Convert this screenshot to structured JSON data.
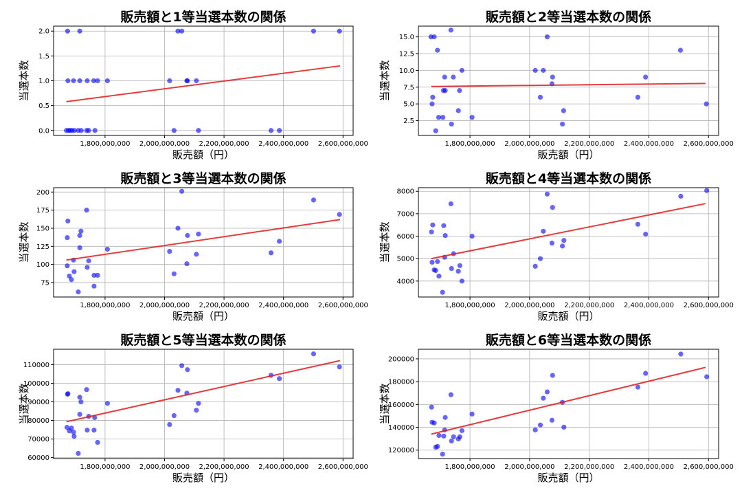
{
  "chart_data": [
    {
      "type": "scatter",
      "title": "販売額と1等当選本数の関係",
      "xlabel": "販売額（円）",
      "ylabel": "当選本数",
      "x_unit": "million yen",
      "xlim": [
        1627,
        2634
      ],
      "ylim": [
        -0.1,
        2.1
      ],
      "xticks": [
        1800,
        2000,
        2200,
        2400,
        2600
      ],
      "xtick_labels": [
        "1,800,000,000",
        "2,000,000,000",
        "2,200,000,000",
        "2,400,000,000",
        "2,600,000,000"
      ],
      "yticks": [
        0,
        0.5,
        1,
        1.5,
        2
      ],
      "ytick_labels": [
        "0.0",
        "0.5",
        "1.0",
        "1.5",
        "2.0"
      ],
      "grid": true,
      "points": [
        [
          1674,
          2
        ],
        [
          1715,
          2
        ],
        [
          2045,
          2
        ],
        [
          2058,
          2
        ],
        [
          2501,
          2
        ],
        [
          2588,
          2
        ],
        [
          1675,
          1
        ],
        [
          1694,
          1
        ],
        [
          1715,
          1
        ],
        [
          1740,
          1
        ],
        [
          1762,
          1
        ],
        [
          1775,
          1
        ],
        [
          1808,
          1
        ],
        [
          2017,
          1
        ],
        [
          2075,
          1
        ],
        [
          2077,
          1
        ],
        [
          2107,
          1
        ],
        [
          1670,
          0
        ],
        [
          1677,
          0
        ],
        [
          1683,
          0
        ],
        [
          1689,
          0
        ],
        [
          1697,
          0
        ],
        [
          1710,
          0
        ],
        [
          1720,
          0
        ],
        [
          1738,
          0
        ],
        [
          1745,
          0
        ],
        [
          1766,
          0
        ],
        [
          2032,
          0
        ],
        [
          2114,
          0
        ],
        [
          2358,
          0
        ],
        [
          2386,
          0
        ]
      ],
      "trend": [
        [
          1670,
          0.58
        ],
        [
          2590,
          1.3
        ]
      ]
    },
    {
      "type": "scatter",
      "title": "販売額と2等当選本数の関係",
      "xlabel": "販売額（円）",
      "ylabel": "当選本数",
      "xlim": [
        1627,
        2634
      ],
      "ylim": [
        0.3,
        16.6
      ],
      "xticks": [
        1800,
        2000,
        2200,
        2400,
        2600
      ],
      "xtick_labels": [
        "1,800,000,000",
        "2,000,000,000",
        "2,200,000,000",
        "2,400,000,000",
        "2,600,000,000"
      ],
      "yticks": [
        2.5,
        5,
        7.5,
        10,
        12.5,
        15
      ],
      "ytick_labels": [
        "2.5",
        "5.0",
        "7.5",
        "10.0",
        "12.5",
        "15.0"
      ],
      "grid": true,
      "points": [
        [
          1669,
          15
        ],
        [
          1680,
          15
        ],
        [
          1736,
          16
        ],
        [
          1691,
          13
        ],
        [
          1773,
          10
        ],
        [
          1715,
          9
        ],
        [
          1744,
          9
        ],
        [
          1711,
          7
        ],
        [
          1717,
          7
        ],
        [
          1765,
          7
        ],
        [
          1675,
          6
        ],
        [
          1673,
          5
        ],
        [
          1761,
          4
        ],
        [
          1695,
          3
        ],
        [
          1709,
          3
        ],
        [
          1807,
          3
        ],
        [
          1738,
          2
        ],
        [
          1685,
          1
        ],
        [
          2019,
          10
        ],
        [
          2046,
          10
        ],
        [
          2059,
          15
        ],
        [
          2077,
          9
        ],
        [
          2075,
          8
        ],
        [
          2036,
          6
        ],
        [
          2114,
          4
        ],
        [
          2110,
          2
        ],
        [
          2363,
          6
        ],
        [
          2389,
          9
        ],
        [
          2506,
          13
        ],
        [
          2593,
          5
        ]
      ],
      "trend": [
        [
          1670,
          7.6
        ],
        [
          2590,
          8.05
        ]
      ]
    },
    {
      "type": "scatter",
      "title": "販売額と3等当選本数の関係",
      "xlabel": "販売額（円）",
      "ylabel": "当選本数",
      "xlim": [
        1627,
        2634
      ],
      "ylim": [
        55,
        206
      ],
      "xticks": [
        1800,
        2000,
        2200,
        2400,
        2600
      ],
      "xtick_labels": [
        "1,800,000,000",
        "2,000,000,000",
        "2,200,000,000",
        "2,400,000,000",
        "2,600,000,000"
      ],
      "yticks": [
        75,
        100,
        125,
        150,
        175,
        200
      ],
      "ytick_labels": [
        "75",
        "100",
        "125",
        "150",
        "175",
        "200"
      ],
      "grid": true,
      "points": [
        [
          2058,
          201
        ],
        [
          2501,
          189
        ],
        [
          2588,
          169
        ],
        [
          1738,
          175
        ],
        [
          1675,
          160
        ],
        [
          1673,
          137
        ],
        [
          1719,
          146
        ],
        [
          1715,
          140
        ],
        [
          1715,
          123
        ],
        [
          1808,
          121
        ],
        [
          1694,
          106
        ],
        [
          1673,
          98
        ],
        [
          1745,
          105
        ],
        [
          1740,
          96
        ],
        [
          1696,
          90
        ],
        [
          1680,
          84
        ],
        [
          1687,
          79
        ],
        [
          1763,
          85
        ],
        [
          1775,
          85
        ],
        [
          1763,
          70
        ],
        [
          1710,
          62
        ],
        [
          2045,
          150
        ],
        [
          2077,
          140
        ],
        [
          2114,
          142
        ],
        [
          2017,
          118
        ],
        [
          2107,
          114
        ],
        [
          2075,
          101
        ],
        [
          2032,
          87
        ],
        [
          2358,
          116
        ],
        [
          2386,
          132
        ]
      ],
      "trend": [
        [
          1670,
          106
        ],
        [
          2590,
          162
        ]
      ]
    },
    {
      "type": "scatter",
      "title": "販売額と4等当選本数の関係",
      "xlabel": "販売額（円）",
      "ylabel": "当選本数",
      "xlim": [
        1627,
        2634
      ],
      "ylim": [
        3290,
        8160
      ],
      "xticks": [
        1800,
        2000,
        2200,
        2400,
        2600
      ],
      "xtick_labels": [
        "1,800,000,000",
        "2,000,000,000",
        "2,200,000,000",
        "2,400,000,000",
        "2,600,000,000"
      ],
      "yticks": [
        4000,
        5000,
        6000,
        7000,
        8000
      ],
      "ytick_labels": [
        "4000",
        "5000",
        "6000",
        "7000",
        "8000"
      ],
      "grid": true,
      "points": [
        [
          2594,
          8030
        ],
        [
          2507,
          7780
        ],
        [
          2059,
          7875
        ],
        [
          2077,
          7280
        ],
        [
          1736,
          7440
        ],
        [
          1675,
          6500
        ],
        [
          1712,
          6470
        ],
        [
          1671,
          6190
        ],
        [
          1717,
          6030
        ],
        [
          1807,
          6000
        ],
        [
          2046,
          6220
        ],
        [
          2363,
          6530
        ],
        [
          2389,
          6090
        ],
        [
          2075,
          5690
        ],
        [
          2115,
          5810
        ],
        [
          2110,
          5560
        ],
        [
          1745,
          5220
        ],
        [
          1715,
          5060
        ],
        [
          1673,
          4840
        ],
        [
          1691,
          4870
        ],
        [
          2036,
          5000
        ],
        [
          2019,
          4660
        ],
        [
          1766,
          4690
        ],
        [
          1738,
          4560
        ],
        [
          1680,
          4500
        ],
        [
          1685,
          4470
        ],
        [
          1761,
          4440
        ],
        [
          1696,
          4220
        ],
        [
          1773,
          4000
        ],
        [
          1708,
          3500
        ]
      ],
      "trend": [
        [
          1670,
          5000
        ],
        [
          2590,
          7450
        ]
      ]
    },
    {
      "type": "scatter",
      "title": "販売額と5等当選本数の関係",
      "xlabel": "販売額（円）",
      "ylabel": "当選本数",
      "xlim": [
        1627,
        2634
      ],
      "ylim": [
        59500,
        118300
      ],
      "xticks": [
        1800,
        2000,
        2200,
        2400,
        2600
      ],
      "xtick_labels": [
        "1,800,000,000",
        "2,000,000,000",
        "2,200,000,000",
        "2,400,000,000",
        "2,600,000,000"
      ],
      "yticks": [
        60000,
        70000,
        80000,
        90000,
        100000,
        110000
      ],
      "ytick_labels": [
        "60000",
        "70000",
        "80000",
        "90000",
        "100000",
        "110000"
      ],
      "grid": true,
      "points": [
        [
          2501,
          115800
        ],
        [
          2588,
          108800
        ],
        [
          2058,
          109500
        ],
        [
          2077,
          107300
        ],
        [
          2358,
          104300
        ],
        [
          2386,
          102500
        ],
        [
          1738,
          96600
        ],
        [
          2045,
          96200
        ],
        [
          2075,
          94700
        ],
        [
          1674,
          94100
        ],
        [
          1675,
          94400
        ],
        [
          1715,
          92500
        ],
        [
          1719,
          90000
        ],
        [
          1808,
          89200
        ],
        [
          2114,
          89200
        ],
        [
          2107,
          85500
        ],
        [
          1715,
          83300
        ],
        [
          1745,
          82200
        ],
        [
          1765,
          81500
        ],
        [
          2032,
          82600
        ],
        [
          2017,
          77800
        ],
        [
          1672,
          76300
        ],
        [
          1687,
          75900
        ],
        [
          1680,
          74400
        ],
        [
          1694,
          73700
        ],
        [
          1740,
          74800
        ],
        [
          1763,
          74800
        ],
        [
          1696,
          71500
        ],
        [
          1775,
          68200
        ],
        [
          1710,
          62300
        ]
      ],
      "trend": [
        [
          1670,
          79300
        ],
        [
          2590,
          112200
        ]
      ]
    },
    {
      "type": "scatter",
      "title": "販売額と6等当選本数の関係",
      "xlabel": "販売額（円）",
      "ylabel": "当選本数",
      "xlim": [
        1627,
        2634
      ],
      "ylim": [
        112600,
        208400
      ],
      "xticks": [
        1800,
        2000,
        2200,
        2400,
        2600
      ],
      "xtick_labels": [
        "1,800,000,000",
        "2,000,000,000",
        "2,200,000,000",
        "2,400,000,000",
        "2,600,000,000"
      ],
      "yticks": [
        120000,
        140000,
        160000,
        180000,
        200000
      ],
      "ytick_labels": [
        "120000",
        "140000",
        "160000",
        "180000",
        "200000"
      ],
      "grid": true,
      "points": [
        [
          2507,
          204200
        ],
        [
          2389,
          187300
        ],
        [
          2594,
          184300
        ],
        [
          2077,
          185500
        ],
        [
          2363,
          175200
        ],
        [
          2059,
          171000
        ],
        [
          1736,
          168600
        ],
        [
          2046,
          165500
        ],
        [
          2110,
          161900
        ],
        [
          1671,
          157700
        ],
        [
          1807,
          151600
        ],
        [
          1717,
          148600
        ],
        [
          1673,
          144400
        ],
        [
          1680,
          143800
        ],
        [
          2075,
          146200
        ],
        [
          2036,
          142000
        ],
        [
          2115,
          140100
        ],
        [
          2019,
          137700
        ],
        [
          1715,
          137700
        ],
        [
          1773,
          137100
        ],
        [
          1696,
          132800
        ],
        [
          1712,
          132300
        ],
        [
          1745,
          131700
        ],
        [
          1766,
          131700
        ],
        [
          1761,
          129800
        ],
        [
          1738,
          128000
        ],
        [
          1691,
          123200
        ],
        [
          1685,
          122600
        ],
        [
          1708,
          116500
        ]
      ],
      "trend": [
        [
          1670,
          134000
        ],
        [
          2590,
          192500
        ]
      ]
    }
  ],
  "colors": {
    "points": "#0000ff",
    "trend": "#e31a1c"
  }
}
